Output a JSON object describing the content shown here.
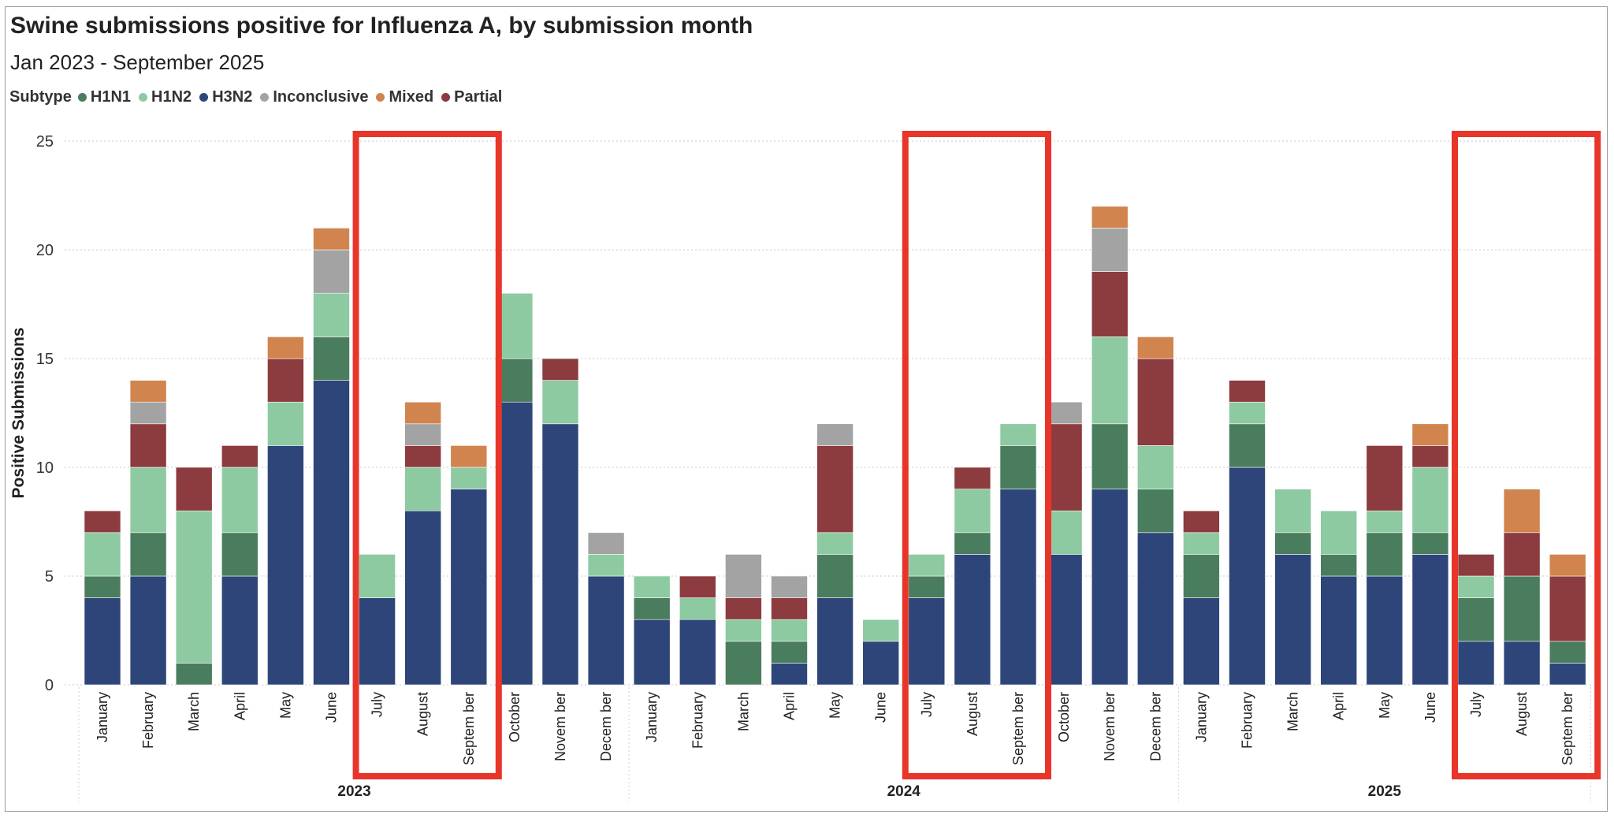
{
  "chart_data": {
    "type": "bar",
    "stacked": true,
    "title": "Swine submissions positive for Influenza A, by submission month",
    "subtitle": "Jan 2023 - September 2025",
    "legend_title": "Subtype",
    "xlabel": "",
    "ylabel": "Positive Submissions",
    "ylim": [
      0,
      25
    ],
    "yticks": [
      0,
      5,
      10,
      15,
      20,
      25
    ],
    "grid": true,
    "legend_position": "top-left",
    "categories": [
      "January",
      "February",
      "March",
      "April",
      "May",
      "June",
      "July",
      "August",
      "Septem ber",
      "October",
      "Novem ber",
      "Decem ber",
      "January",
      "February",
      "March",
      "April",
      "May",
      "June",
      "July",
      "August",
      "Septem ber",
      "October",
      "Novem ber",
      "Decem ber",
      "January",
      "February",
      "March",
      "April",
      "May",
      "June",
      "July",
      "August",
      "Septem ber"
    ],
    "years": [
      {
        "label": "2023",
        "count": 12
      },
      {
        "label": "2024",
        "count": 12
      },
      {
        "label": "2025",
        "count": 9
      }
    ],
    "stack_order": [
      "H3N2",
      "H1N1",
      "H1N2",
      "Partial",
      "Inconclusive",
      "Mixed"
    ],
    "series": [
      {
        "name": "H1N1",
        "color": "#4a7c5e",
        "values": [
          1,
          2,
          1,
          2,
          0,
          2,
          0,
          0,
          0,
          2,
          0,
          0,
          1,
          0,
          2,
          1,
          2,
          0,
          1,
          1,
          2,
          0,
          3,
          2,
          2,
          2,
          1,
          1,
          2,
          1,
          2,
          3,
          1
        ]
      },
      {
        "name": "H1N2",
        "color": "#8dcaa1",
        "values": [
          2,
          3,
          7,
          3,
          2,
          2,
          2,
          2,
          1,
          3,
          2,
          1,
          1,
          1,
          1,
          1,
          1,
          1,
          1,
          2,
          1,
          2,
          4,
          2,
          1,
          1,
          2,
          2,
          1,
          3,
          1,
          0,
          0
        ]
      },
      {
        "name": "H3N2",
        "color": "#2e4579",
        "values": [
          4,
          5,
          0,
          5,
          11,
          14,
          4,
          8,
          9,
          13,
          12,
          5,
          3,
          3,
          0,
          1,
          4,
          2,
          4,
          6,
          9,
          6,
          9,
          7,
          4,
          10,
          6,
          5,
          5,
          6,
          2,
          2,
          1
        ]
      },
      {
        "name": "Inconclusive",
        "color": "#a3a3a3",
        "values": [
          0,
          1,
          0,
          0,
          0,
          2,
          0,
          1,
          0,
          0,
          0,
          1,
          0,
          0,
          2,
          1,
          1,
          0,
          0,
          0,
          0,
          1,
          2,
          0,
          0,
          0,
          0,
          0,
          0,
          0,
          0,
          0,
          0
        ]
      },
      {
        "name": "Mixed",
        "color": "#d1844e",
        "values": [
          0,
          1,
          0,
          0,
          1,
          1,
          0,
          1,
          1,
          0,
          0,
          0,
          0,
          0,
          0,
          0,
          0,
          0,
          0,
          0,
          0,
          0,
          1,
          1,
          0,
          0,
          0,
          0,
          0,
          1,
          0,
          2,
          1
        ]
      },
      {
        "name": "Partial",
        "color": "#8c3b3e",
        "values": [
          1,
          2,
          2,
          1,
          2,
          0,
          0,
          1,
          0,
          0,
          1,
          0,
          0,
          1,
          1,
          1,
          4,
          0,
          0,
          1,
          0,
          4,
          3,
          4,
          1,
          1,
          0,
          0,
          3,
          1,
          1,
          2,
          3
        ]
      }
    ],
    "highlights": [
      {
        "start": 6,
        "end": 8,
        "color": "#e8352a"
      },
      {
        "start": 18,
        "end": 20,
        "color": "#e8352a"
      },
      {
        "start": 30,
        "end": 32,
        "color": "#e8352a"
      }
    ]
  }
}
